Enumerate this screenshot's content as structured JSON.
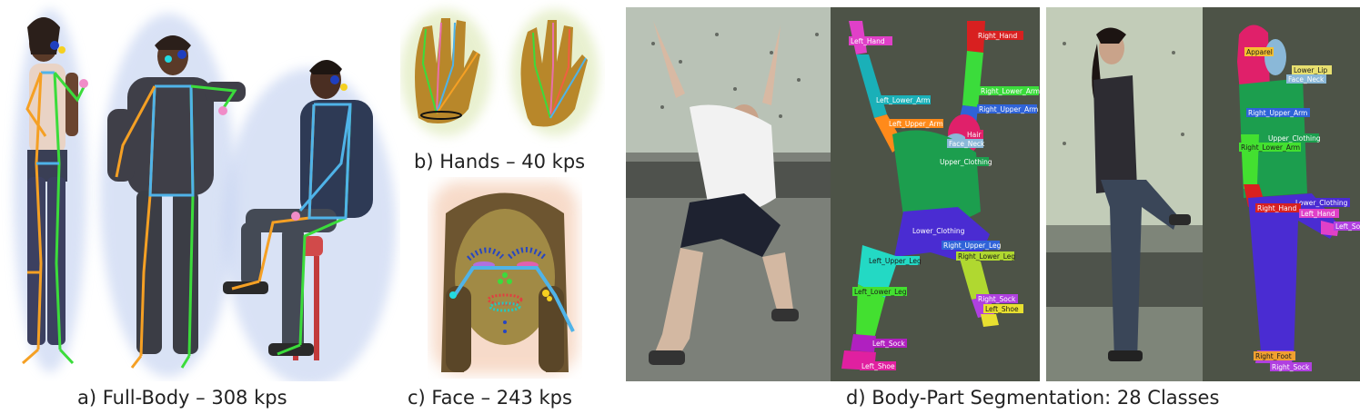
{
  "captions": {
    "full_body": "a) Full-Body – 308 kps",
    "hands": "b) Hands – 40 kps",
    "face": "c) Face – 243 kps",
    "segmentation": "d) Body-Part Segmentation: 28 Classes"
  },
  "segmentation_labels_1": {
    "left_hand": "Left_Hand",
    "right_hand": "Right_Hand",
    "right_lower_arm": "Right_Lower_Arm",
    "left_lower_arm": "Left_Lower_Arm",
    "right_upper_arm": "Right_Upper_Arm",
    "left_upper_arm": "Left_Upper_Arm",
    "hair": "Hair",
    "face_neck": "Face_Neck",
    "upper_clothing": "Upper_Clothing",
    "lower_clothing": "Lower_Clothing",
    "right_upper_leg": "Right_Upper_Leg",
    "right_lower_leg": "Right_Lower_Leg",
    "left_upper_leg": "Left_Upper_Leg",
    "left_lower_leg": "Left_Lower_Leg",
    "right_sock": "Right_Sock",
    "left_shoe": "Left_Shoe",
    "left_sock": "Left_Sock",
    "left_shoe_bottom": "Left_Shoe"
  },
  "segmentation_labels_2": {
    "apparel": "Apparel",
    "lower_lip": "Lower_Lip",
    "face_neck": "Face_Neck",
    "right_upper_arm": "Right_Upper_Arm",
    "upper_clothing": "Upper_Clothing",
    "right_lower_arm": "Right_Lower_Arm",
    "lower_clothing": "Lower_Clothing",
    "right_hand": "Right_Hand",
    "left_hand": "Left_Hand",
    "left_sock": "Left_Soc",
    "right_foot": "Right_Foot",
    "right_sock": "Right_Sock"
  },
  "colors": {
    "blue_limb": "#4fb3e8",
    "orange_limb": "#f5a024",
    "green_limb": "#3bdc3b",
    "glow": "#c9d6f2",
    "scene_dark": "#3a3d38",
    "seg_bg": "#4d5347"
  }
}
